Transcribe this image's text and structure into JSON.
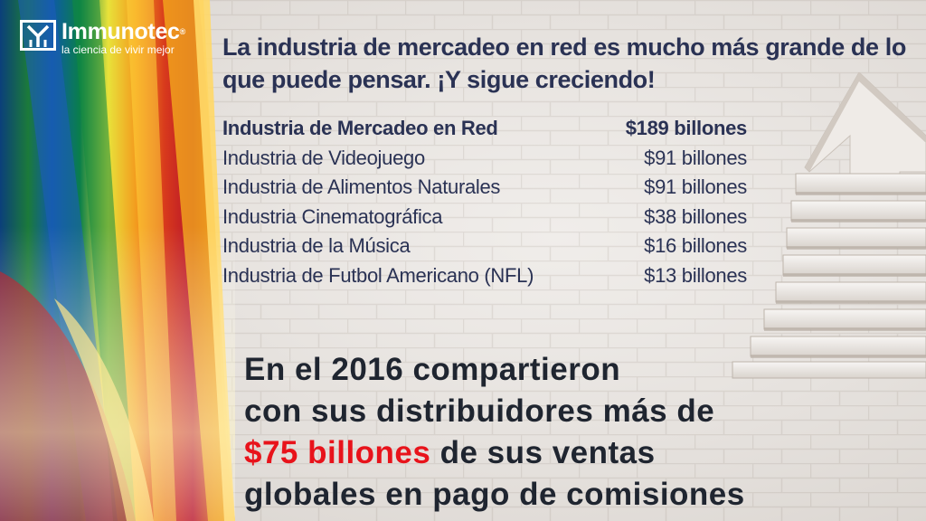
{
  "logo": {
    "name": "Immunotec",
    "registered": "®",
    "tagline": "la ciencia de vivir mejor",
    "icon": "immunotec-logo-icon"
  },
  "headline": "La industria de mercadeo en red es mucho más grande de lo que puede pensar. ¡Y sigue creciendo!",
  "industries": {
    "header": {
      "name": "Industria de Mercadeo en Red",
      "value": "$189 billones"
    },
    "rows": [
      {
        "name": "Industria de Videojuego",
        "value": "$91 billones"
      },
      {
        "name": "Industria de Alimentos Naturales",
        "value": "$91 billones"
      },
      {
        "name": "Industria Cinematográfica",
        "value": "$38 billones"
      },
      {
        "name": "Industria de la Música",
        "value": "$16 billones"
      },
      {
        "name": "Industria de Futbol Americano (NFL)",
        "value": "$13 billones"
      }
    ]
  },
  "statement": {
    "line1": "En el 2016 compartieron",
    "line2": "con sus distribuidores más de",
    "highlight": "$75 billones",
    "line3_rest": " de sus ventas",
    "line4": "globales en pago de comisiones"
  },
  "colors": {
    "title": "#2a3254",
    "highlight": "#e8131b",
    "body_text": "#1f2530"
  }
}
